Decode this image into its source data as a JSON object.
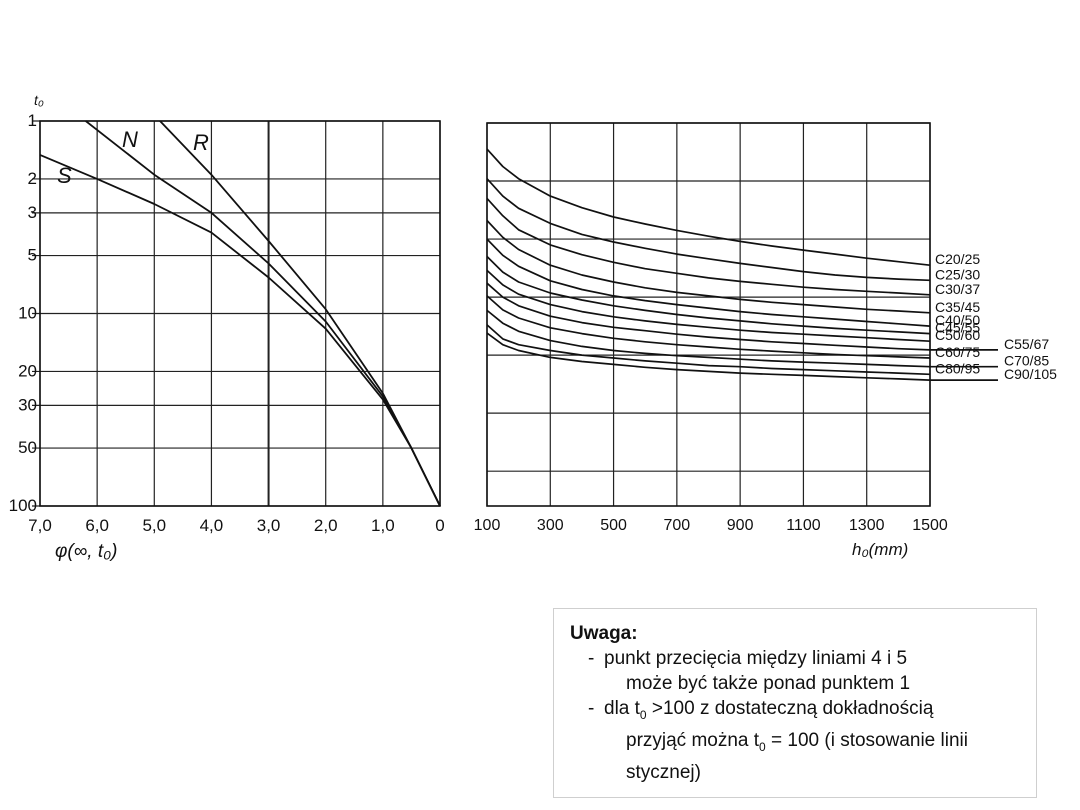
{
  "chart_data": [
    {
      "type": "line",
      "title": "",
      "ylabel": "t₀",
      "xlabel": "φ(∞, t₀)",
      "x_direction": "reversed",
      "xlim": [
        7.0,
        0
      ],
      "y_scale": "log",
      "ylim": [
        1,
        100
      ],
      "x_ticks": [
        "7,0",
        "6,0",
        "5,0",
        "4,0",
        "3,0",
        "2,0",
        "1,0",
        "0"
      ],
      "y_ticks": [
        "1",
        "2",
        "3",
        "5",
        "10",
        "20",
        "30",
        "50",
        "100"
      ],
      "grid": true,
      "series": [
        {
          "name": "S",
          "points": [
            [
              7.0,
              1.5
            ],
            [
              6.0,
              2.0
            ],
            [
              5.0,
              2.7
            ],
            [
              4.0,
              3.8
            ],
            [
              3.0,
              6.5
            ],
            [
              2.0,
              12
            ],
            [
              1.0,
              28
            ],
            [
              0.5,
              50
            ],
            [
              0,
              100
            ]
          ]
        },
        {
          "name": "N",
          "points": [
            [
              6.2,
              1.0
            ],
            [
              5.0,
              1.9
            ],
            [
              4.0,
              3.0
            ],
            [
              3.0,
              5.5
            ],
            [
              2.0,
              11
            ],
            [
              1.0,
              27
            ],
            [
              0.5,
              50
            ],
            [
              0,
              100
            ]
          ]
        },
        {
          "name": "R",
          "points": [
            [
              4.9,
              1.0
            ],
            [
              4.0,
              1.9
            ],
            [
              3.0,
              4.2
            ],
            [
              2.0,
              9.5
            ],
            [
              1.0,
              26
            ],
            [
              0.5,
              50
            ],
            [
              0,
              100
            ]
          ]
        }
      ]
    },
    {
      "type": "line",
      "title": "",
      "xlabel": "h₀(mm)",
      "x_ticks": [
        "100",
        "300",
        "500",
        "700",
        "900",
        "1100",
        "1300",
        "1500"
      ],
      "x": [
        100,
        150,
        200,
        300,
        400,
        500,
        600,
        700,
        800,
        900,
        1000,
        1100,
        1200,
        1300,
        1400,
        1500
      ],
      "grid": true,
      "series": [
        {
          "name": "C20/25",
          "values": [
            0.45,
            0.75,
            0.96,
            1.26,
            1.46,
            1.62,
            1.74,
            1.85,
            1.95,
            2.04,
            2.12,
            2.19,
            2.26,
            2.33,
            2.39,
            2.45
          ]
        },
        {
          "name": "C25/30",
          "values": [
            0.96,
            1.26,
            1.47,
            1.73,
            1.92,
            2.05,
            2.16,
            2.26,
            2.34,
            2.42,
            2.49,
            2.56,
            2.62,
            2.66,
            2.69,
            2.71
          ]
        },
        {
          "name": "C30/37",
          "values": [
            1.3,
            1.6,
            1.84,
            2.1,
            2.27,
            2.4,
            2.51,
            2.59,
            2.67,
            2.73,
            2.78,
            2.83,
            2.87,
            2.9,
            2.93,
            2.96
          ]
        },
        {
          "name": "C35/45",
          "values": [
            1.68,
            1.97,
            2.18,
            2.45,
            2.62,
            2.74,
            2.84,
            2.92,
            2.98,
            3.04,
            3.09,
            3.13,
            3.17,
            3.21,
            3.24,
            3.27
          ]
        },
        {
          "name": "C40/50",
          "values": [
            2.0,
            2.28,
            2.47,
            2.72,
            2.87,
            2.98,
            3.06,
            3.13,
            3.19,
            3.25,
            3.3,
            3.34,
            3.38,
            3.42,
            3.46,
            3.5
          ]
        },
        {
          "name": "C45/55",
          "values": [
            2.3,
            2.57,
            2.74,
            2.93,
            3.05,
            3.15,
            3.23,
            3.3,
            3.36,
            3.41,
            3.46,
            3.5,
            3.54,
            3.57,
            3.6,
            3.63
          ]
        },
        {
          "name": "C50/60",
          "values": [
            2.54,
            2.79,
            2.95,
            3.13,
            3.25,
            3.34,
            3.41,
            3.47,
            3.52,
            3.57,
            3.61,
            3.64,
            3.67,
            3.7,
            3.73,
            3.76
          ]
        },
        {
          "name": "C55/67",
          "values": [
            2.76,
            3.0,
            3.15,
            3.33,
            3.44,
            3.52,
            3.58,
            3.64,
            3.69,
            3.73,
            3.77,
            3.8,
            3.83,
            3.86,
            3.89,
            3.91
          ]
        },
        {
          "name": "C60/75",
          "values": [
            2.98,
            3.22,
            3.36,
            3.53,
            3.63,
            3.71,
            3.77,
            3.82,
            3.86,
            3.9,
            3.93,
            3.96,
            3.99,
            4.01,
            4.03,
            4.05
          ]
        },
        {
          "name": "C70/85",
          "values": [
            3.23,
            3.45,
            3.59,
            3.75,
            3.85,
            3.92,
            3.97,
            4.01,
            4.04,
            4.07,
            4.1,
            4.12,
            4.14,
            4.16,
            4.18,
            4.2
          ]
        },
        {
          "name": "C80/95",
          "values": [
            3.48,
            3.72,
            3.82,
            3.92,
            4.0,
            4.05,
            4.1,
            4.14,
            4.18,
            4.2,
            4.23,
            4.25,
            4.27,
            4.29,
            4.31,
            4.33
          ]
        },
        {
          "name": "C90/105",
          "values": [
            3.62,
            3.82,
            3.92,
            4.04,
            4.11,
            4.16,
            4.21,
            4.25,
            4.28,
            4.31,
            4.33,
            4.35,
            4.37,
            4.39,
            4.41,
            4.43
          ]
        }
      ]
    }
  ],
  "note": {
    "title": "Uwaga:",
    "item1_dash": "-",
    "item1_line1": "punkt przecięcia między liniami 4 i 5",
    "item1_line2": "może być także ponad punktem 1",
    "item2_dash": "-",
    "item2_a": "dla t",
    "item2_sub1": "0",
    "item2_b": " >100 z dostateczną dokładnością",
    "item2_c": "przyjąć można t",
    "item2_sub2": "0",
    "item2_d": "  = 100 (i stosowanie linii",
    "item2_line3": "stycznej)"
  }
}
